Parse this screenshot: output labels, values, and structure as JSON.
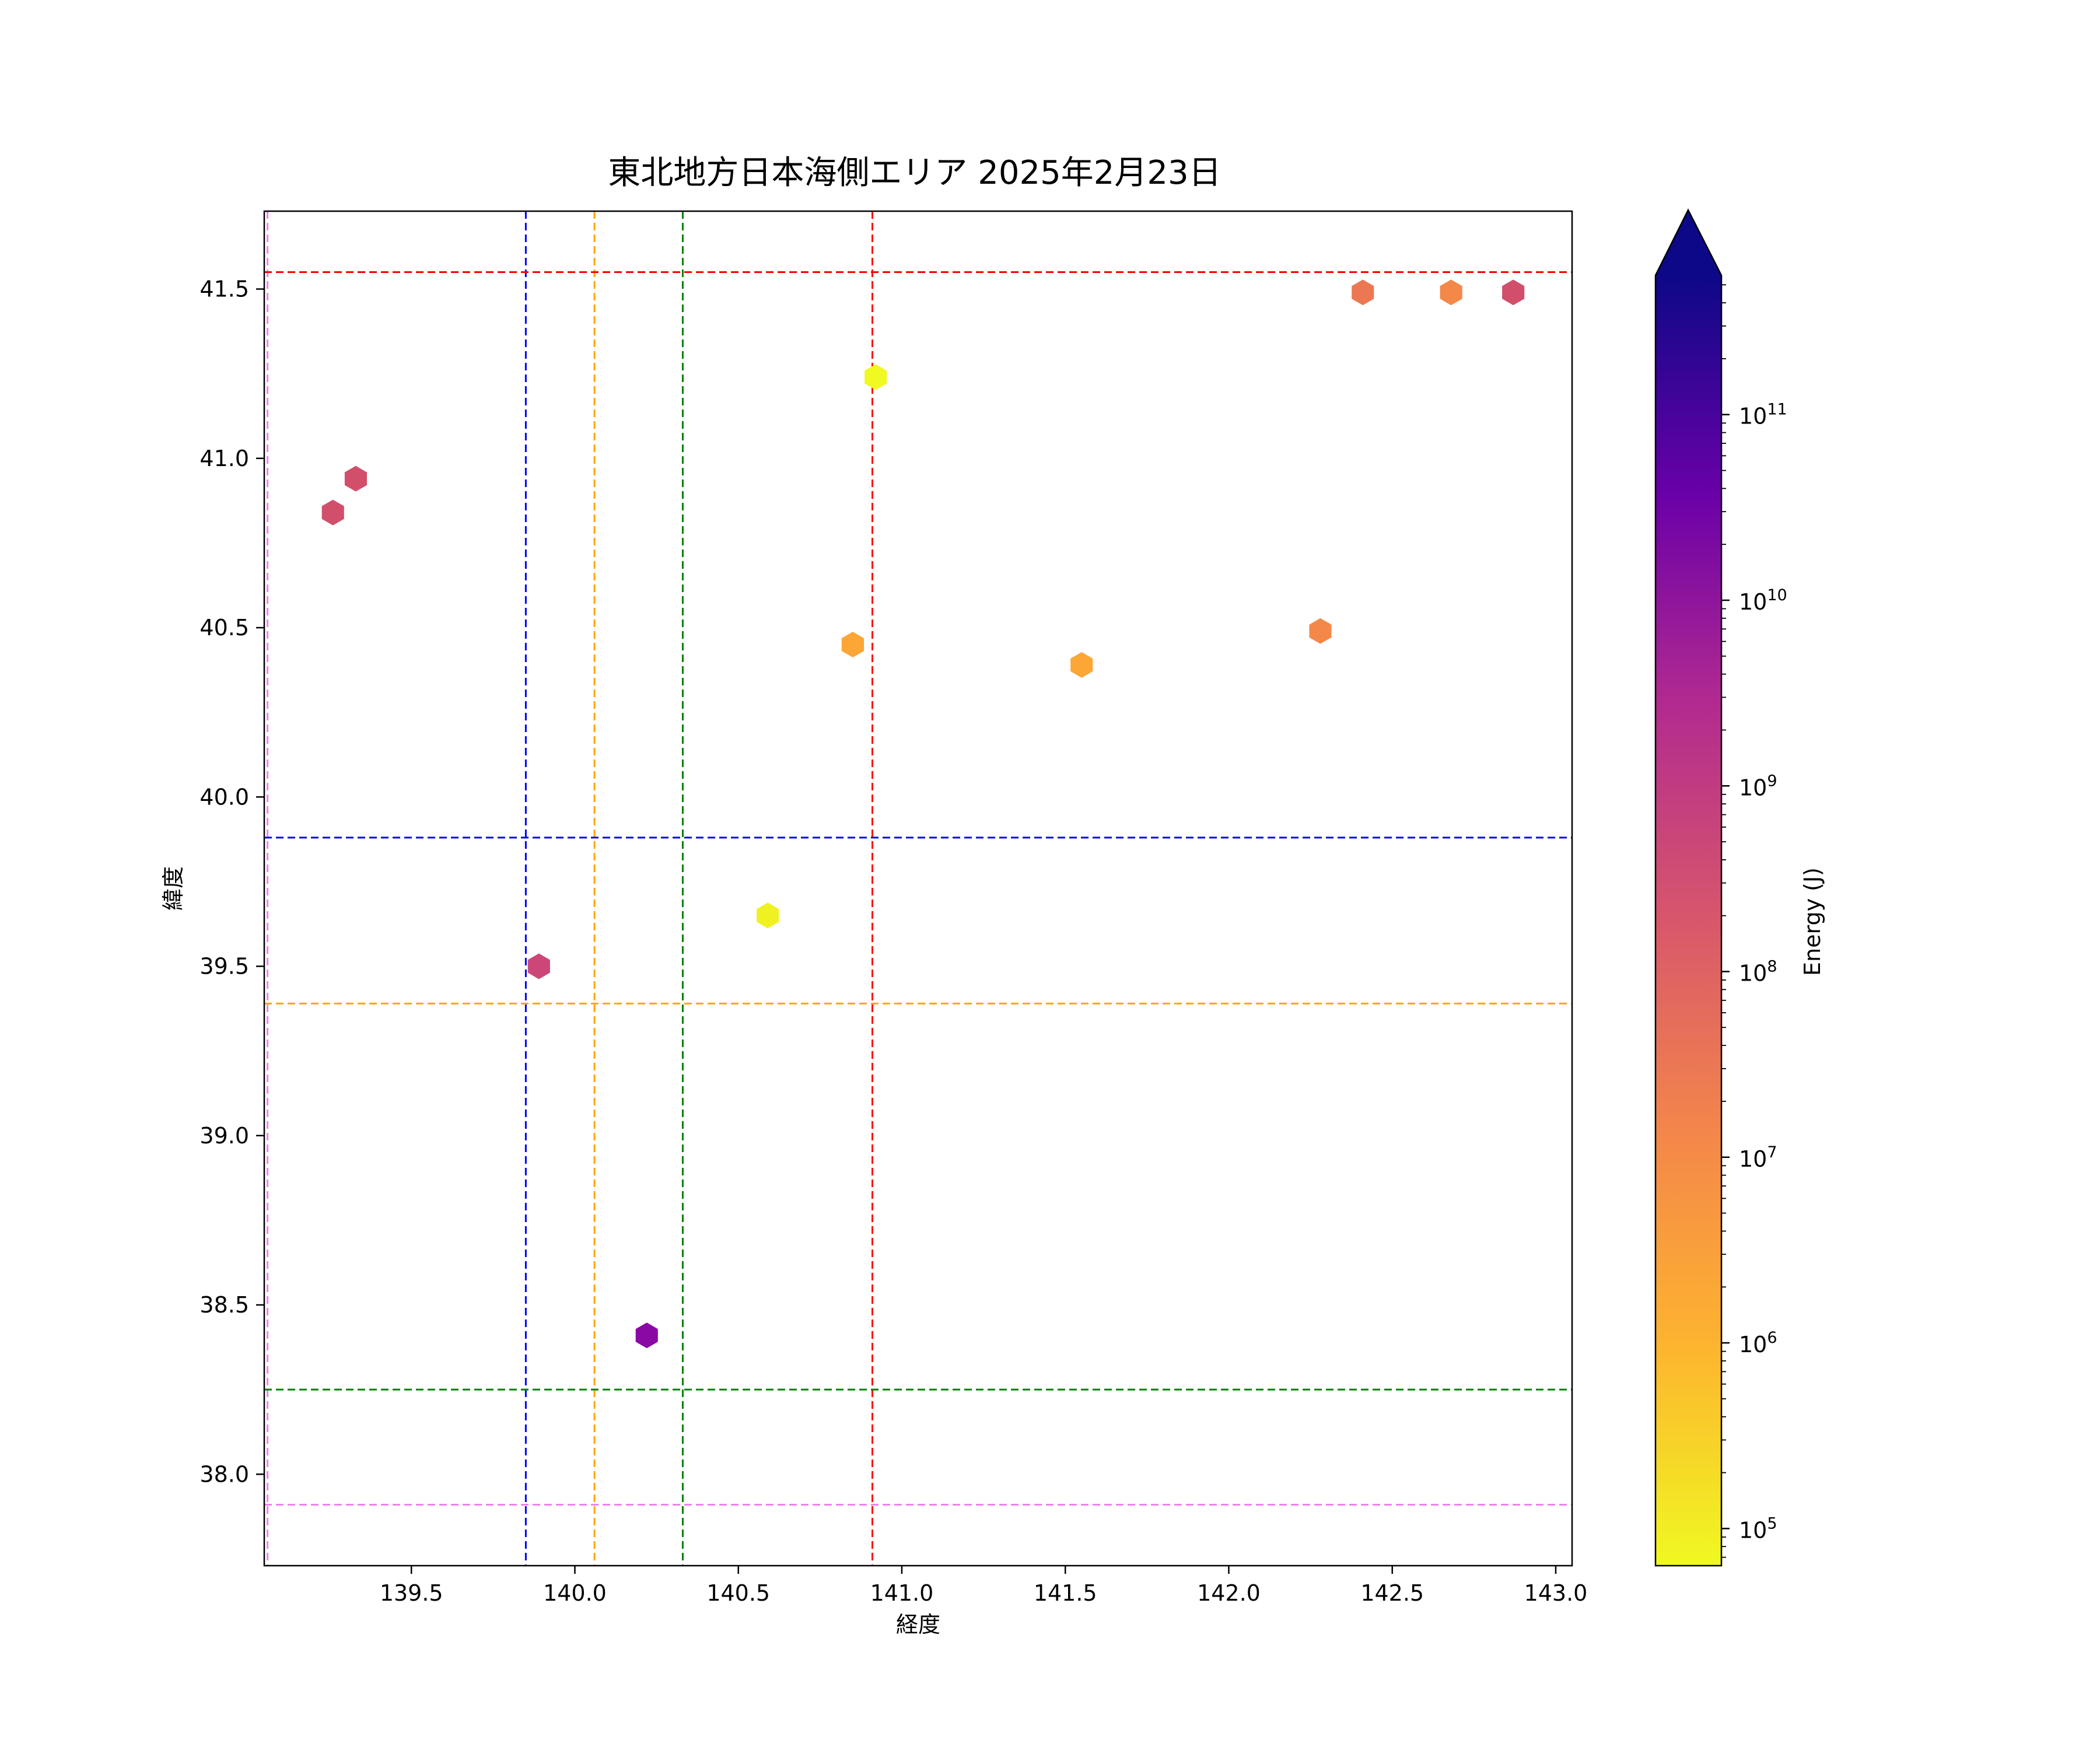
{
  "chart_data": {
    "type": "scatter",
    "title": "東北地方日本海側エリア 2025年2月23日",
    "xlabel": "経度",
    "ylabel": "緯度",
    "xlim": [
      139.05,
      143.05
    ],
    "ylim": [
      37.73,
      41.73
    ],
    "x_ticks": [
      "139.5",
      "140.0",
      "140.5",
      "141.0",
      "141.5",
      "142.0",
      "142.5",
      "143.0"
    ],
    "y_ticks": [
      "38.0",
      "38.5",
      "39.0",
      "39.5",
      "40.0",
      "40.5",
      "41.0",
      "41.5"
    ],
    "marker": "hexagon",
    "points": [
      {
        "x": 139.26,
        "y": 40.84,
        "color": "#d14f6b"
      },
      {
        "x": 139.33,
        "y": 40.94,
        "color": "#d14f6b"
      },
      {
        "x": 139.89,
        "y": 39.5,
        "color": "#cc4778"
      },
      {
        "x": 140.22,
        "y": 38.41,
        "color": "#8a09a5"
      },
      {
        "x": 140.59,
        "y": 39.65,
        "color": "#f0f121"
      },
      {
        "x": 140.85,
        "y": 40.45,
        "color": "#fca636"
      },
      {
        "x": 140.92,
        "y": 41.24,
        "color": "#f0f921"
      },
      {
        "x": 141.55,
        "y": 40.39,
        "color": "#fca636"
      },
      {
        "x": 142.28,
        "y": 40.49,
        "color": "#f48849"
      },
      {
        "x": 142.41,
        "y": 41.49,
        "color": "#ec7853"
      },
      {
        "x": 142.68,
        "y": 41.49,
        "color": "#f48849"
      },
      {
        "x": 142.87,
        "y": 41.49,
        "color": "#d14f6b"
      }
    ],
    "vlines": [
      {
        "x": 139.06,
        "color": "#ee82ee"
      },
      {
        "x": 139.85,
        "color": "#0000ff"
      },
      {
        "x": 140.06,
        "color": "#ffa500"
      },
      {
        "x": 140.33,
        "color": "#008000"
      },
      {
        "x": 140.91,
        "color": "#ff0000"
      }
    ],
    "hlines": [
      {
        "y": 41.55,
        "color": "#ff0000"
      },
      {
        "y": 39.88,
        "color": "#0000ff"
      },
      {
        "y": 39.39,
        "color": "#ffa500"
      },
      {
        "y": 38.25,
        "color": "#008000"
      },
      {
        "y": 37.91,
        "color": "#ee82ee"
      }
    ],
    "colorbar": {
      "label": "Energy (J)",
      "scale": "log",
      "colormap": "plasma_r",
      "range_log10": [
        4.8,
        11.75
      ],
      "extend": "max",
      "tick_exponents": [
        5,
        6,
        7,
        8,
        9,
        10,
        11
      ],
      "tick_base": "10",
      "tick_exponent_labels": [
        "5",
        "6",
        "7",
        "8",
        "9",
        "10",
        "11"
      ],
      "gradient": [
        "#f0f921",
        "#fdb42f",
        "#f48849",
        "#d8576b",
        "#b12a90",
        "#6a00a8",
        "#0d0887"
      ]
    }
  }
}
